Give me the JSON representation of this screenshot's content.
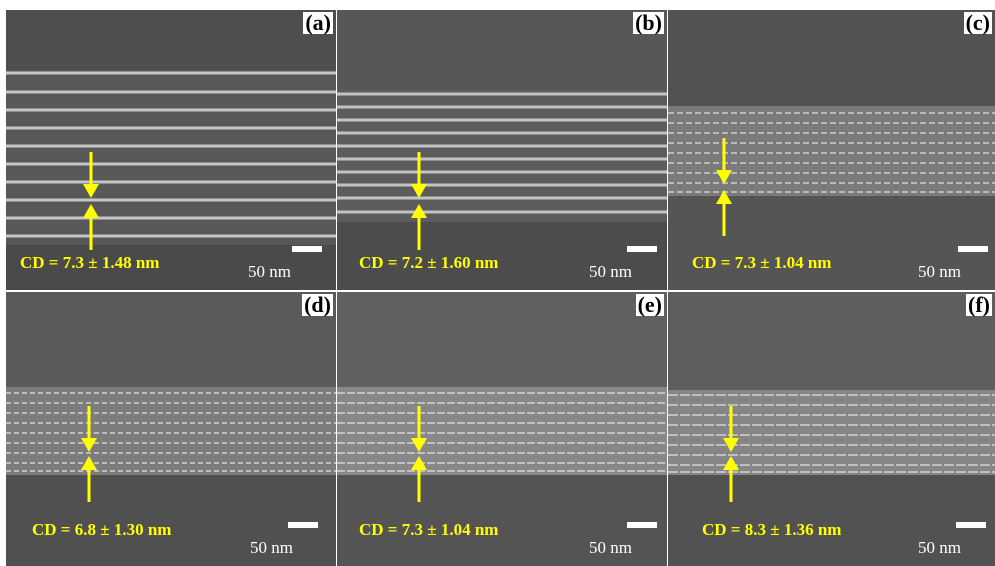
{
  "panels": [
    {
      "label": "(a)",
      "cd_text": "CD = 7.3 ± 1.48 nm",
      "scale_text": "50 nm"
    },
    {
      "label": "(b)",
      "cd_text": "CD = 7.2 ± 1.60 nm",
      "scale_text": "50 nm"
    },
    {
      "label": "(c)",
      "cd_text": "CD = 7.3 ± 1.04 nm",
      "scale_text": "50 nm"
    },
    {
      "label": "(d)",
      "cd_text": "CD = 6.8 ± 1.30 nm",
      "scale_text": "50 nm"
    },
    {
      "label": "(e)",
      "cd_text": "CD = 7.3 ± 1.04 nm",
      "scale_text": "50 nm"
    },
    {
      "label": "(f)",
      "cd_text": "CD = 8.3 ± 1.36 nm",
      "scale_text": "50 nm"
    }
  ],
  "colors": {
    "annotation": "#ffff00",
    "scale_bar": "#ffffff",
    "background": "#5a5a5a"
  }
}
